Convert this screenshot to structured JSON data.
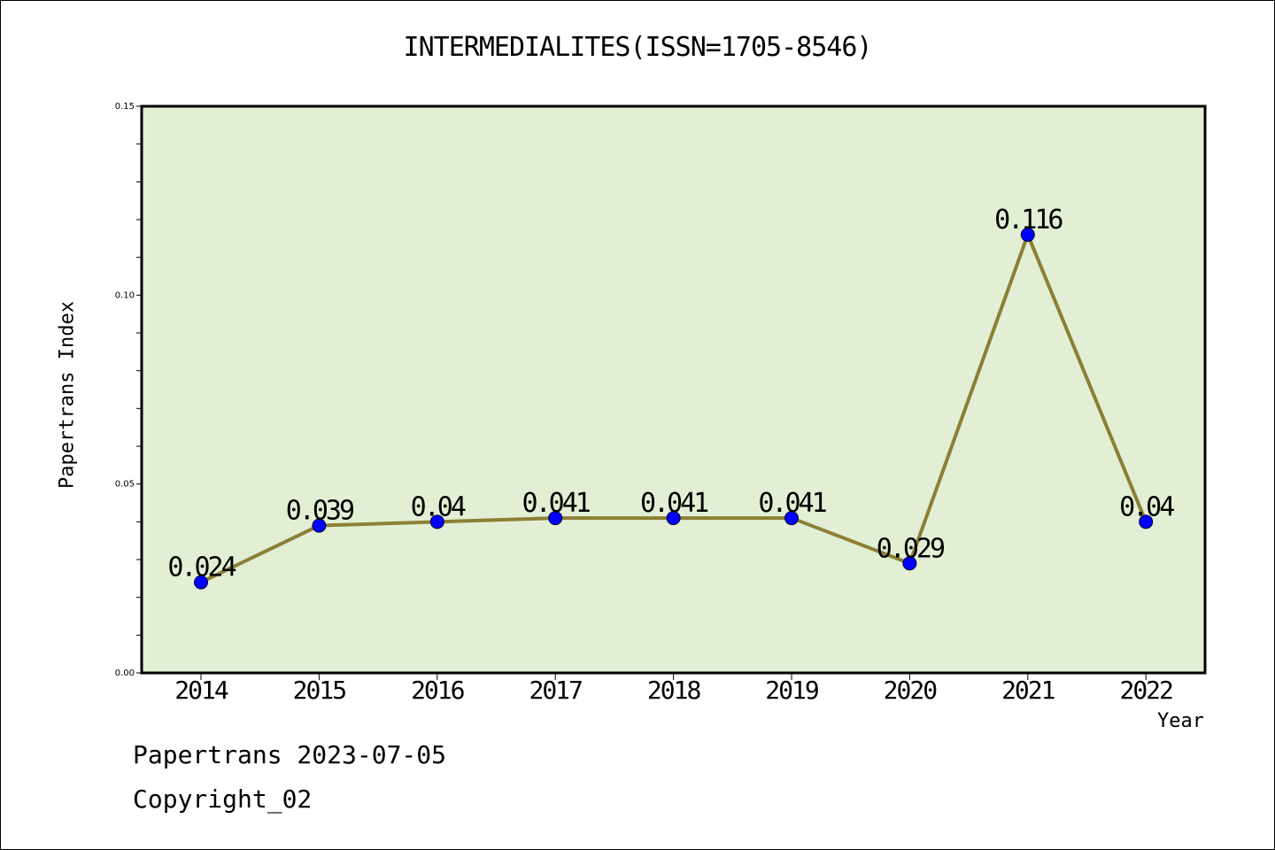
{
  "chart_data": {
    "type": "line",
    "title": "INTERMEDIALITES(ISSN=1705-8546)",
    "xlabel": "Year",
    "ylabel": "Papertrans Index",
    "categories": [
      "2014",
      "2015",
      "2016",
      "2017",
      "2018",
      "2019",
      "2020",
      "2021",
      "2022"
    ],
    "series": [
      {
        "values": [
          0.024,
          0.039,
          0.04,
          0.041,
          0.041,
          0.041,
          0.029,
          0.116,
          0.04
        ]
      }
    ],
    "data_labels": [
      "0.024",
      "0.039",
      "0.04",
      "0.041",
      "0.041",
      "0.041",
      "0.029",
      "0.116",
      "0.04"
    ],
    "ylim": [
      0,
      0.15
    ],
    "yticks": [
      "0.00",
      "0.05",
      "0.10",
      "0.15"
    ],
    "grid": false,
    "colors": {
      "plot_bg": "#e2efd4",
      "line": "#8c7f35",
      "marker": "#0000ff"
    }
  },
  "footer": {
    "line1": "Papertrans 2023-07-05",
    "line2": "Copyright_02"
  }
}
